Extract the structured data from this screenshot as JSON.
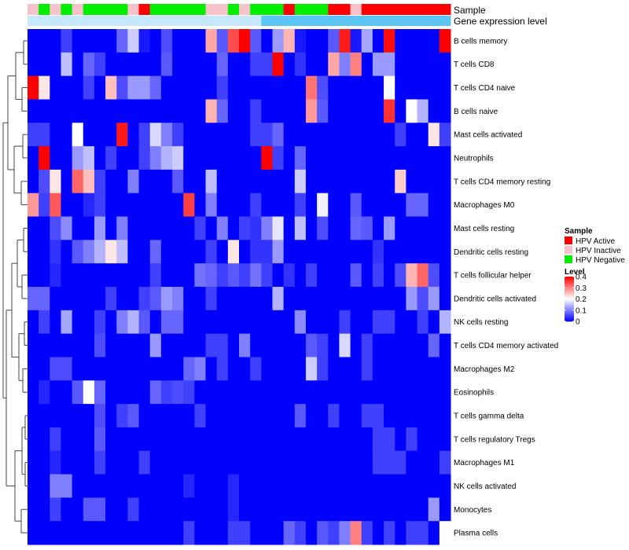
{
  "chart_data": {
    "type": "heatmap",
    "title": "",
    "annotation_tracks": [
      {
        "label": "Sample",
        "values": [
          "HPV Inactive",
          "HPV Negative",
          "HPV Inactive",
          "HPV Negative",
          "HPV Inactive",
          "HPV Negative",
          "HPV Negative",
          "HPV Negative",
          "HPV Negative",
          "HPV Inactive",
          "HPV Active",
          "HPV Negative",
          "HPV Negative",
          "HPV Negative",
          "HPV Negative",
          "HPV Negative",
          "HPV Inactive",
          "HPV Inactive",
          "HPV Negative",
          "HPV Inactive",
          "HPV Negative",
          "HPV Negative",
          "HPV Negative",
          "HPV Active",
          "HPV Negative",
          "HPV Negative",
          "HPV Negative",
          "HPV Active",
          "HPV Active",
          "HPV Inactive",
          "HPV Active",
          "HPV Active",
          "HPV Active",
          "HPV Active",
          "HPV Active",
          "HPV Active",
          "HPV Active",
          "HPV Active"
        ]
      },
      {
        "label": "Gene expression level",
        "values": [
          "low",
          "low",
          "low",
          "low",
          "low",
          "low",
          "low",
          "low",
          "low",
          "low",
          "low",
          "low",
          "low",
          "low",
          "low",
          "low",
          "low",
          "low",
          "low",
          "low",
          "low",
          "high",
          "high",
          "high",
          "high",
          "high",
          "high",
          "high",
          "high",
          "high",
          "high",
          "high",
          "high",
          "high",
          "high",
          "high",
          "high",
          "high"
        ]
      }
    ],
    "track_colors": {
      "HPV Active": "#ff0000",
      "HPV Inactive": "#f4c2c8",
      "HPV Negative": "#00ee00",
      "low": "#c6e8fb",
      "high": "#5bc6f3"
    },
    "rows": [
      "B cells memory",
      "T cells CD8",
      "T cells CD4 naive",
      "B cells naive",
      "Mast cells activated",
      "Neutrophils",
      "T cells CD4 memory resting",
      "Macrophages M0",
      "Mast cells resting",
      "Dendritic cells resting",
      "T cells follicular helper",
      "Dendritic cells activated",
      "NK cells resting",
      "T cells CD4 memory activated",
      "Macrophages M2",
      "Eosinophils",
      "T cells gamma delta",
      "T cells regulatory  Tregs",
      "Macrophages M1",
      "NK cells activated",
      "Monocytes",
      "Plasma cells"
    ],
    "n_columns": 38,
    "values": [
      [
        0.0,
        0.0,
        0.0,
        0.05,
        0.0,
        0.0,
        0.0,
        0.0,
        0.08,
        0.16,
        0.02,
        0.0,
        0.06,
        0.0,
        0.0,
        0.0,
        0.27,
        0.07,
        0.34,
        0.4,
        0.07,
        0.0,
        0.12,
        0.26,
        0.02,
        0.0,
        0.0,
        0.07,
        0.38,
        0.02,
        0.13,
        0.0,
        0.39,
        0.0,
        0.0,
        0.0,
        0.0,
        0.4
      ],
      [
        0.0,
        0.0,
        0.0,
        0.15,
        0.0,
        0.08,
        0.05,
        0.0,
        0.0,
        0.0,
        0.0,
        0.0,
        0.07,
        0.0,
        0.0,
        0.0,
        0.0,
        0.08,
        0.0,
        0.0,
        0.05,
        0.05,
        0.4,
        0.0,
        0.04,
        0.0,
        0.0,
        0.27,
        0.1,
        0.3,
        0.0,
        0.12,
        0.12,
        0.0,
        0.0,
        0.0,
        0.0,
        0.0
      ],
      [
        0.4,
        0.22,
        0.0,
        0.0,
        0.0,
        0.05,
        0.0,
        0.25,
        0.06,
        0.12,
        0.12,
        0.08,
        0.0,
        0.0,
        0.0,
        0.0,
        0.0,
        0.05,
        0.0,
        0.0,
        0.0,
        0.0,
        0.0,
        0.0,
        0.0,
        0.31,
        0.06,
        0.0,
        0.0,
        0.0,
        0.0,
        0.0,
        0.2,
        0.0,
        0.0,
        0.0,
        0.0,
        0.0
      ],
      [
        0.0,
        0.0,
        0.0,
        0.0,
        0.0,
        0.0,
        0.0,
        0.0,
        0.0,
        0.0,
        0.0,
        0.0,
        0.0,
        0.0,
        0.0,
        0.0,
        0.26,
        0.08,
        0.0,
        0.0,
        0.05,
        0.0,
        0.0,
        0.0,
        0.0,
        0.28,
        0.07,
        0.0,
        0.0,
        0.0,
        0.0,
        0.0,
        0.36,
        0.0,
        0.2,
        0.14,
        0.0,
        0.0
      ],
      [
        0.05,
        0.05,
        0.0,
        0.0,
        0.2,
        0.0,
        0.0,
        0.0,
        0.38,
        0.0,
        0.05,
        0.17,
        0.1,
        0.05,
        0.0,
        0.0,
        0.0,
        0.0,
        0.0,
        0.0,
        0.05,
        0.05,
        0.08,
        0.0,
        0.0,
        0.0,
        0.0,
        0.0,
        0.0,
        0.0,
        0.0,
        0.0,
        0.0,
        0.05,
        0.0,
        0.0,
        0.22,
        0.05
      ],
      [
        0.0,
        0.4,
        0.0,
        0.0,
        0.12,
        0.15,
        0.0,
        0.05,
        0.0,
        0.0,
        0.05,
        0.1,
        0.14,
        0.16,
        0.0,
        0.0,
        0.0,
        0.0,
        0.0,
        0.0,
        0.0,
        0.4,
        0.05,
        0.0,
        0.08,
        0.0,
        0.0,
        0.0,
        0.0,
        0.0,
        0.0,
        0.0,
        0.0,
        0.0,
        0.0,
        0.0,
        0.0,
        0.0
      ],
      [
        0.0,
        0.06,
        0.22,
        0.0,
        0.32,
        0.25,
        0.05,
        0.0,
        0.0,
        0.1,
        0.0,
        0.0,
        0.0,
        0.07,
        0.0,
        0.0,
        0.15,
        0.0,
        0.0,
        0.0,
        0.0,
        0.0,
        0.0,
        0.0,
        0.16,
        0.0,
        0.0,
        0.0,
        0.0,
        0.0,
        0.0,
        0.0,
        0.0,
        0.24,
        0.0,
        0.0,
        0.0,
        0.0
      ],
      [
        0.28,
        0.05,
        0.33,
        0.0,
        0.0,
        0.03,
        0.05,
        0.0,
        0.0,
        0.0,
        0.0,
        0.0,
        0.0,
        0.0,
        0.35,
        0.0,
        0.1,
        0.0,
        0.0,
        0.0,
        0.05,
        0.0,
        0.0,
        0.0,
        0.05,
        0.0,
        0.19,
        0.0,
        0.0,
        0.07,
        0.0,
        0.0,
        0.0,
        0.0,
        0.08,
        0.08,
        0.0,
        0.0
      ],
      [
        0.0,
        0.0,
        0.06,
        0.11,
        0.0,
        0.0,
        0.12,
        0.0,
        0.1,
        0.0,
        0.0,
        0.0,
        0.0,
        0.0,
        0.0,
        0.05,
        0.0,
        0.1,
        0.0,
        0.05,
        0.04,
        0.1,
        0.18,
        0.0,
        0.15,
        0.0,
        0.06,
        0.0,
        0.0,
        0.08,
        0.07,
        0.0,
        0.12,
        0.0,
        0.0,
        0.0,
        0.0,
        0.0
      ],
      [
        0.0,
        0.0,
        0.04,
        0.0,
        0.07,
        0.1,
        0.14,
        0.22,
        0.15,
        0.0,
        0.0,
        0.08,
        0.0,
        0.0,
        0.0,
        0.0,
        0.05,
        0.0,
        0.22,
        0.0,
        0.04,
        0.04,
        0.12,
        0.0,
        0.0,
        0.0,
        0.0,
        0.0,
        0.0,
        0.0,
        0.0,
        0.04,
        0.0,
        0.0,
        0.0,
        0.0,
        0.0,
        0.0
      ],
      [
        0.0,
        0.0,
        0.03,
        0.0,
        0.0,
        0.0,
        0.0,
        0.0,
        0.0,
        0.0,
        0.0,
        0.05,
        0.0,
        0.0,
        0.0,
        0.09,
        0.08,
        0.05,
        0.07,
        0.05,
        0.09,
        0.05,
        0.0,
        0.04,
        0.0,
        0.05,
        0.0,
        0.0,
        0.0,
        0.07,
        0.0,
        0.05,
        0.0,
        0.06,
        0.26,
        0.32,
        0.06,
        0.0
      ],
      [
        0.08,
        0.08,
        0.0,
        0.0,
        0.0,
        0.0,
        0.0,
        0.05,
        0.0,
        0.0,
        0.05,
        0.07,
        0.12,
        0.1,
        0.0,
        0.0,
        0.05,
        0.0,
        0.0,
        0.0,
        0.0,
        0.0,
        0.14,
        0.0,
        0.0,
        0.0,
        0.0,
        0.0,
        0.0,
        0.0,
        0.0,
        0.0,
        0.0,
        0.0,
        0.12,
        0.06,
        0.12,
        0.0
      ],
      [
        0.0,
        0.05,
        0.0,
        0.13,
        0.0,
        0.0,
        0.05,
        0.0,
        0.1,
        0.14,
        0.07,
        0.0,
        0.08,
        0.08,
        0.0,
        0.0,
        0.0,
        0.0,
        0.0,
        0.0,
        0.0,
        0.0,
        0.0,
        0.0,
        0.11,
        0.0,
        0.0,
        0.0,
        0.05,
        0.0,
        0.0,
        0.05,
        0.05,
        0.0,
        0.0,
        0.05,
        0.0,
        0.14
      ],
      [
        0.0,
        0.0,
        0.0,
        0.0,
        0.0,
        0.0,
        0.06,
        0.0,
        0.0,
        0.0,
        0.0,
        0.12,
        0.0,
        0.0,
        0.0,
        0.0,
        0.05,
        0.05,
        0.0,
        0.1,
        0.0,
        0.0,
        0.0,
        0.0,
        0.0,
        0.07,
        0.05,
        0.0,
        0.17,
        0.0,
        0.05,
        0.0,
        0.0,
        0.0,
        0.0,
        0.0,
        0.08,
        0.0
      ],
      [
        0.0,
        0.0,
        0.06,
        0.06,
        0.0,
        0.0,
        0.0,
        0.0,
        0.0,
        0.0,
        0.0,
        0.0,
        0.0,
        0.0,
        0.08,
        0.1,
        0.0,
        0.05,
        0.0,
        0.0,
        0.05,
        0.0,
        0.0,
        0.0,
        0.0,
        0.16,
        0.05,
        0.0,
        0.0,
        0.0,
        0.05,
        0.0,
        0.0,
        0.0,
        0.0,
        0.0,
        0.0,
        0.0
      ],
      [
        0.0,
        0.03,
        0.0,
        0.0,
        0.07,
        0.2,
        0.08,
        0.0,
        0.0,
        0.0,
        0.0,
        0.08,
        0.05,
        0.06,
        0.05,
        0.0,
        0.0,
        0.0,
        0.0,
        0.0,
        0.0,
        0.0,
        0.0,
        0.0,
        0.0,
        0.0,
        0.0,
        0.0,
        0.0,
        0.0,
        0.0,
        0.0,
        0.0,
        0.0,
        0.0,
        0.0,
        0.0,
        0.0
      ],
      [
        0.0,
        0.0,
        0.0,
        0.0,
        0.0,
        0.0,
        0.06,
        0.0,
        0.05,
        0.07,
        0.0,
        0.0,
        0.0,
        0.0,
        0.0,
        0.05,
        0.0,
        0.0,
        0.0,
        0.0,
        0.0,
        0.0,
        0.0,
        0.0,
        0.07,
        0.0,
        0.0,
        0.05,
        0.0,
        0.0,
        0.05,
        0.05,
        0.0,
        0.0,
        0.0,
        0.0,
        0.0,
        0.0
      ],
      [
        0.0,
        0.0,
        0.05,
        0.0,
        0.0,
        0.0,
        0.07,
        0.0,
        0.0,
        0.0,
        0.0,
        0.0,
        0.0,
        0.0,
        0.0,
        0.0,
        0.0,
        0.0,
        0.0,
        0.0,
        0.0,
        0.0,
        0.0,
        0.0,
        0.0,
        0.0,
        0.0,
        0.0,
        0.0,
        0.0,
        0.0,
        0.05,
        0.05,
        0.0,
        0.05,
        0.0,
        0.0,
        0.0
      ],
      [
        0.0,
        0.0,
        0.03,
        0.0,
        0.0,
        0.0,
        0.05,
        0.0,
        0.0,
        0.0,
        0.05,
        0.0,
        0.0,
        0.0,
        0.0,
        0.0,
        0.0,
        0.0,
        0.0,
        0.0,
        0.0,
        0.0,
        0.0,
        0.0,
        0.0,
        0.0,
        0.0,
        0.0,
        0.0,
        0.0,
        0.0,
        0.05,
        0.05,
        0.05,
        0.0,
        0.0,
        0.0,
        0.05
      ],
      [
        0.0,
        0.0,
        0.1,
        0.1,
        0.0,
        0.0,
        0.0,
        0.0,
        0.0,
        0.0,
        0.0,
        0.0,
        0.0,
        0.0,
        0.03,
        0.0,
        0.0,
        0.0,
        0.03,
        0.0,
        0.0,
        0.0,
        0.0,
        0.0,
        0.0,
        0.0,
        0.0,
        0.0,
        0.0,
        0.0,
        0.0,
        0.0,
        0.0,
        0.0,
        0.0,
        0.0,
        0.0,
        0.0
      ],
      [
        0.0,
        0.0,
        0.05,
        0.0,
        0.0,
        0.07,
        0.07,
        0.0,
        0.0,
        0.05,
        0.0,
        0.0,
        0.0,
        0.0,
        0.0,
        0.0,
        0.0,
        0.0,
        0.03,
        0.0,
        0.0,
        0.0,
        0.0,
        0.0,
        0.0,
        0.0,
        0.0,
        0.0,
        0.0,
        0.0,
        0.0,
        0.0,
        0.0,
        0.0,
        0.0,
        0.0,
        0.12,
        0.0
      ],
      [
        0.0,
        0.0,
        0.0,
        0.0,
        0.0,
        0.0,
        0.0,
        0.0,
        0.0,
        0.0,
        0.0,
        0.0,
        0.0,
        0.0,
        0.05,
        0.0,
        0.0,
        0.0,
        0.05,
        0.05,
        0.0,
        0.0,
        0.0,
        0.08,
        0.05,
        0.0,
        0.07,
        0.05,
        0.1,
        0.3,
        0.05,
        0.0,
        0.05,
        0.0,
        0.05,
        0.05,
        0.0,
        0.2
      ]
    ],
    "color_scale": {
      "label": "Level",
      "min": 0,
      "max": 0.4,
      "ticks": [
        0.4,
        0.3,
        0.2,
        0.1,
        0
      ],
      "low_color": "#0000ff",
      "mid_color": "#ffffff",
      "high_color": "#ff0000",
      "mid_value": 0.2
    },
    "legend": {
      "title": "Sample",
      "entries": [
        {
          "label": "HPV Active",
          "color": "#ff0000"
        },
        {
          "label": "HPV Inactive",
          "color": "#f4c2c8"
        },
        {
          "label": "HPV Negative",
          "color": "#00ee00"
        }
      ],
      "placement": "right"
    }
  }
}
